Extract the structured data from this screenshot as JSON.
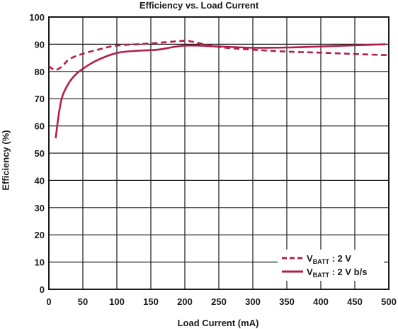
{
  "chart_data": {
    "type": "line",
    "title": "Efficiency vs. Load Current",
    "xlabel": "Load Current (mA)",
    "ylabel": "Efficiency (%)",
    "xlim": [
      0,
      500
    ],
    "ylim": [
      0,
      100
    ],
    "x_ticks": [
      0,
      50,
      100,
      150,
      200,
      250,
      300,
      350,
      400,
      450,
      500
    ],
    "y_ticks": [
      0,
      10,
      20,
      30,
      40,
      50,
      60,
      70,
      80,
      90,
      100
    ],
    "grid": true,
    "legend_position": "bottom-right",
    "colors": {
      "series": "#b21f4a",
      "grid": "#1a1a1a"
    },
    "series": [
      {
        "name_main": "V",
        "name_sub": "BATT",
        "name_suffix": " : 2 V",
        "style": "dashed",
        "points": [
          [
            0,
            82
          ],
          [
            5,
            81
          ],
          [
            10,
            80.5
          ],
          [
            20,
            82
          ],
          [
            30,
            84.5
          ],
          [
            50,
            86.5
          ],
          [
            80,
            88.5
          ],
          [
            100,
            89.5
          ],
          [
            150,
            90.3
          ],
          [
            200,
            91.3
          ],
          [
            210,
            91
          ],
          [
            250,
            89
          ],
          [
            300,
            88
          ],
          [
            350,
            87.3
          ],
          [
            400,
            86.9
          ],
          [
            450,
            86.4
          ],
          [
            500,
            86
          ]
        ]
      },
      {
        "name_main": "V",
        "name_sub": "BATT",
        "name_suffix": " : 2 V b/s",
        "style": "solid",
        "points": [
          [
            10,
            55.5
          ],
          [
            15,
            65
          ],
          [
            20,
            71
          ],
          [
            30,
            76
          ],
          [
            40,
            79
          ],
          [
            50,
            81
          ],
          [
            70,
            84
          ],
          [
            100,
            86.8
          ],
          [
            130,
            87.6
          ],
          [
            160,
            88
          ],
          [
            200,
            89.5
          ],
          [
            250,
            89.2
          ],
          [
            300,
            88.7
          ],
          [
            350,
            88.8
          ],
          [
            400,
            89.2
          ],
          [
            450,
            89.6
          ],
          [
            495,
            90
          ]
        ]
      }
    ]
  }
}
